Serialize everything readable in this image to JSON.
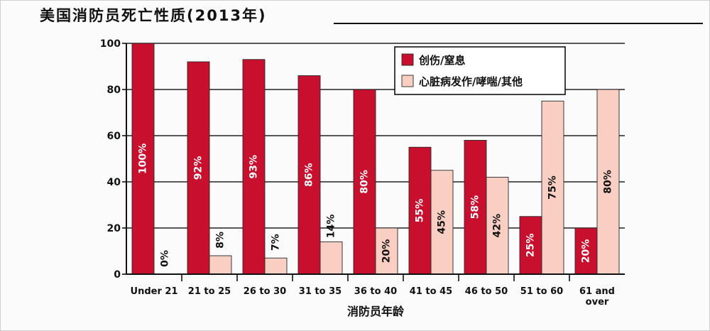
{
  "colors": {
    "injury": "#c8102e",
    "heart": "#f9cfc4",
    "grid": "#222222",
    "axis": "#111111"
  },
  "chart_data": {
    "type": "bar",
    "title": "美国消防员死亡性质(2013年)",
    "xlabel": "消防员年龄",
    "ylabel": "",
    "ylim": [
      0,
      100
    ],
    "yticks": [
      0,
      20,
      40,
      60,
      80,
      100
    ],
    "grid": true,
    "legend_position": "top-right",
    "categories": [
      [
        "Under 21"
      ],
      [
        "21 to 25"
      ],
      [
        "26 to 30"
      ],
      [
        "31 to 35"
      ],
      [
        "36 to 40"
      ],
      [
        "41 to 45"
      ],
      [
        "46 to 50"
      ],
      [
        "51 to 60"
      ],
      [
        "61 and",
        "over"
      ]
    ],
    "series": [
      {
        "name": "创伤/窒息",
        "color": "#c8102e",
        "values": [
          100,
          92,
          93,
          86,
          80,
          55,
          58,
          25,
          20
        ],
        "labels": [
          "100%",
          "92%",
          "93%",
          "86%",
          "80%",
          "55%",
          "58%",
          "25%",
          "20%"
        ]
      },
      {
        "name": "心脏病发作/哮喘/其他",
        "color": "#f9cfc4",
        "values": [
          0,
          8,
          7,
          14,
          20,
          45,
          42,
          75,
          80
        ],
        "labels": [
          "0%",
          "8%",
          "7%",
          "14%",
          "20%",
          "45%",
          "42%",
          "75%",
          "80%"
        ]
      }
    ]
  }
}
